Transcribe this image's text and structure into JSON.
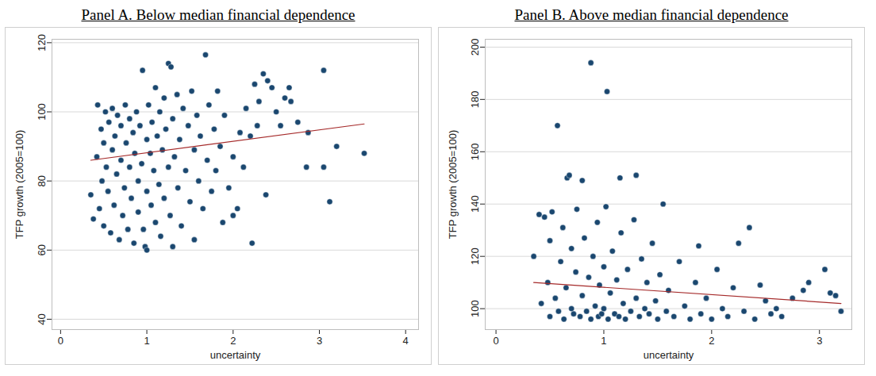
{
  "chart_data": [
    {
      "type": "scatter",
      "title": "Panel A. Below median financial dependence",
      "xlabel": "uncertainty",
      "ylabel": "TFP growth (2005=100)",
      "color": "#1a476f",
      "marker": "circle",
      "grid": true,
      "xlim": [
        -0.1,
        4.15
      ],
      "ylim": [
        37,
        121
      ],
      "xticks": [
        0,
        1,
        2,
        3,
        4
      ],
      "yticks": [
        40,
        60,
        80,
        100,
        120
      ],
      "x": [
        0.35,
        0.38,
        0.42,
        0.43,
        0.45,
        0.47,
        0.48,
        0.5,
        0.5,
        0.52,
        0.53,
        0.55,
        0.56,
        0.58,
        0.6,
        0.6,
        0.62,
        0.63,
        0.65,
        0.66,
        0.68,
        0.7,
        0.7,
        0.72,
        0.74,
        0.75,
        0.76,
        0.78,
        0.8,
        0.8,
        0.82,
        0.84,
        0.85,
        0.86,
        0.88,
        0.9,
        0.9,
        0.92,
        0.94,
        0.95,
        0.96,
        0.98,
        1.0,
        1.0,
        1.0,
        1.02,
        1.04,
        1.05,
        1.06,
        1.08,
        1.1,
        1.1,
        1.12,
        1.14,
        1.15,
        1.16,
        1.18,
        1.2,
        1.2,
        1.22,
        1.25,
        1.25,
        1.27,
        1.28,
        1.3,
        1.3,
        1.32,
        1.35,
        1.36,
        1.38,
        1.4,
        1.42,
        1.45,
        1.48,
        1.5,
        1.52,
        1.55,
        1.55,
        1.58,
        1.6,
        1.62,
        1.65,
        1.68,
        1.7,
        1.72,
        1.75,
        1.78,
        1.8,
        1.82,
        1.85,
        1.88,
        1.9,
        1.95,
        2.0,
        2.0,
        2.05,
        2.08,
        2.12,
        2.15,
        2.2,
        2.22,
        2.25,
        2.28,
        2.3,
        2.35,
        2.38,
        2.4,
        2.45,
        2.5,
        2.55,
        2.6,
        2.65,
        2.67,
        2.75,
        2.85,
        2.87,
        3.05,
        3.05,
        3.12,
        3.2,
        3.52
      ],
      "values": [
        76,
        69,
        87,
        102,
        72,
        95,
        80,
        91,
        67,
        100,
        84,
        77,
        97,
        65,
        89,
        101,
        73,
        93,
        82,
        99,
        63,
        86,
        96,
        70,
        78,
        102,
        91,
        66,
        84,
        98,
        75,
        94,
        62,
        88,
        100,
        80,
        71,
        96,
        85,
        112,
        66,
        61,
        92,
        77,
        60,
        102,
        88,
        73,
        97,
        83,
        107,
        68,
        93,
        79,
        100,
        64,
        89,
        104,
        75,
        95,
        114,
        84,
        70,
        113,
        61,
        98,
        87,
        105,
        78,
        92,
        67,
        101,
        83,
        96,
        74,
        106,
        63,
        89,
        99,
        80,
        93,
        72,
        116.5,
        86,
        102,
        77,
        95,
        83,
        106,
        90,
        68,
        99,
        78,
        70,
        87,
        72,
        94,
        84,
        101,
        93,
        62,
        108,
        96,
        103,
        111,
        76,
        109,
        107,
        100,
        96,
        104,
        107,
        103,
        97,
        84,
        94,
        84,
        112,
        74,
        90,
        88
      ],
      "fit_line": {
        "x": [
          0.35,
          3.52
        ],
        "values": [
          86,
          96.5
        ],
        "color": "#a52a2a"
      }
    },
    {
      "type": "scatter",
      "title": "Panel B. Above median financial dependence",
      "xlabel": "uncertainty",
      "ylabel": "TFP growth (2005=100)",
      "color": "#1a476f",
      "marker": "circle",
      "grid": true,
      "xlim": [
        -0.1,
        3.3
      ],
      "ylim": [
        92,
        203
      ],
      "xticks": [
        0,
        1,
        2,
        3
      ],
      "yticks": [
        100,
        120,
        140,
        160,
        180,
        200
      ],
      "x": [
        0.35,
        0.4,
        0.42,
        0.45,
        0.48,
        0.5,
        0.5,
        0.52,
        0.55,
        0.57,
        0.58,
        0.6,
        0.62,
        0.63,
        0.65,
        0.66,
        0.68,
        0.7,
        0.7,
        0.72,
        0.74,
        0.75,
        0.78,
        0.8,
        0.8,
        0.82,
        0.84,
        0.86,
        0.88,
        0.88,
        0.9,
        0.92,
        0.94,
        0.95,
        0.96,
        0.98,
        1.0,
        1.0,
        1.02,
        1.03,
        1.04,
        1.06,
        1.08,
        1.1,
        1.12,
        1.14,
        1.15,
        1.16,
        1.18,
        1.2,
        1.22,
        1.25,
        1.28,
        1.3,
        1.3,
        1.33,
        1.35,
        1.38,
        1.4,
        1.42,
        1.45,
        1.48,
        1.5,
        1.52,
        1.55,
        1.58,
        1.6,
        1.65,
        1.7,
        1.75,
        1.8,
        1.85,
        1.88,
        1.9,
        1.95,
        2.0,
        2.05,
        2.1,
        2.15,
        2.2,
        2.25,
        2.3,
        2.35,
        2.4,
        2.45,
        2.5,
        2.55,
        2.6,
        2.65,
        2.75,
        2.85,
        2.9,
        3.05,
        3.1,
        3.15,
        3.2
      ],
      "values": [
        120,
        136,
        102,
        135,
        110,
        97,
        126,
        137,
        104,
        170,
        99,
        118,
        131,
        96,
        108,
        150,
        151,
        100,
        123,
        98,
        114,
        138,
        97,
        149,
        105,
        127,
        99,
        112,
        194,
        96,
        120,
        101,
        133,
        97,
        109,
        98,
        116,
        100,
        139,
        183,
        96,
        106,
        122,
        98,
        111,
        97,
        150,
        129,
        102,
        96,
        115,
        99,
        134,
        151,
        104,
        97,
        119,
        100,
        110,
        98,
        125,
        103,
        96,
        113,
        140,
        99,
        107,
        97,
        118,
        101,
        96,
        110,
        124,
        98,
        104,
        96,
        115,
        100,
        97,
        108,
        125,
        99,
        131,
        96,
        109,
        103,
        98,
        100,
        97,
        104,
        107,
        110,
        115,
        106,
        105,
        99
      ],
      "fit_line": {
        "x": [
          0.35,
          3.2
        ],
        "values": [
          110,
          102
        ],
        "color": "#a52a2a"
      }
    }
  ]
}
